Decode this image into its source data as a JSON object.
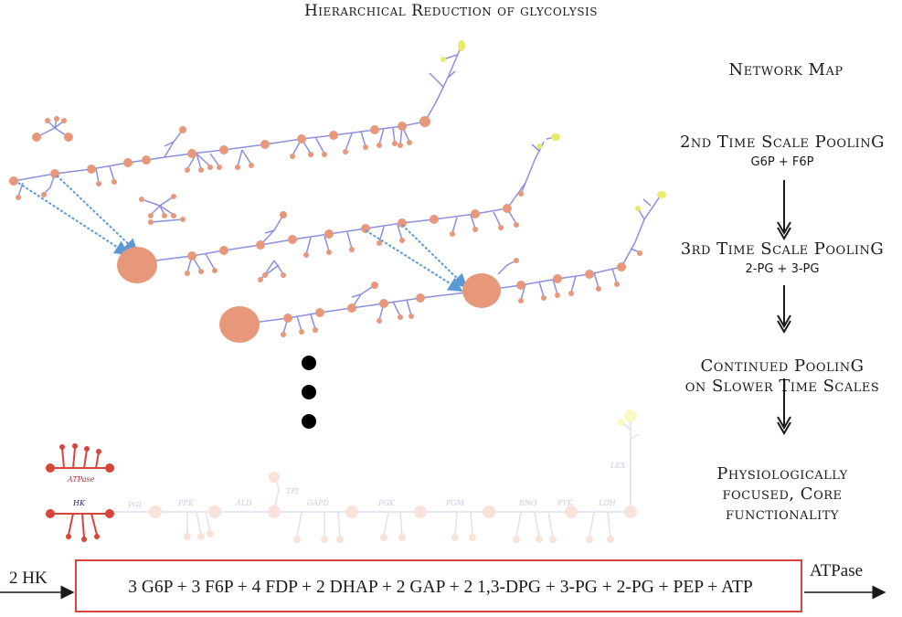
{
  "title": "Hierarchical Reduction of glycolysis",
  "steps": [
    {
      "label": "Network Map",
      "sub": ""
    },
    {
      "label": "2nd Time Scale PoolinG",
      "sub": "G6P + F6P"
    },
    {
      "label": "3rd Time Scale PoolinG",
      "sub": "2-PG + 3-PG"
    },
    {
      "label": "Continued PoolinG\non Slower Time Scales",
      "sub": ""
    },
    {
      "label": "Physiologically\nfocused, Core\nfunctionality",
      "sub": ""
    }
  ],
  "core_network": {
    "enzymes": [
      "PGI",
      "PFK",
      "ALD",
      "TPI",
      "GAPD",
      "PGK",
      "PGM",
      "ENO",
      "PYK",
      "LDH",
      "LEX"
    ],
    "red_nodes": [
      "ATPase",
      "HK"
    ]
  },
  "equation": {
    "input": "2 HK",
    "pool": "3 G6P + 3 F6P + 4 FDP +  2 DHAP + 2 GAP + 2 1,3-DPG + 3-PG + 2-PG + PEP + ATP",
    "output": "ATPase"
  },
  "colors": {
    "node": "#e8987a",
    "edge": "#8c8fe0",
    "arrow": "#5b9bd5",
    "pool_red": "#d9443a",
    "yellow": "#e9ea6a"
  }
}
